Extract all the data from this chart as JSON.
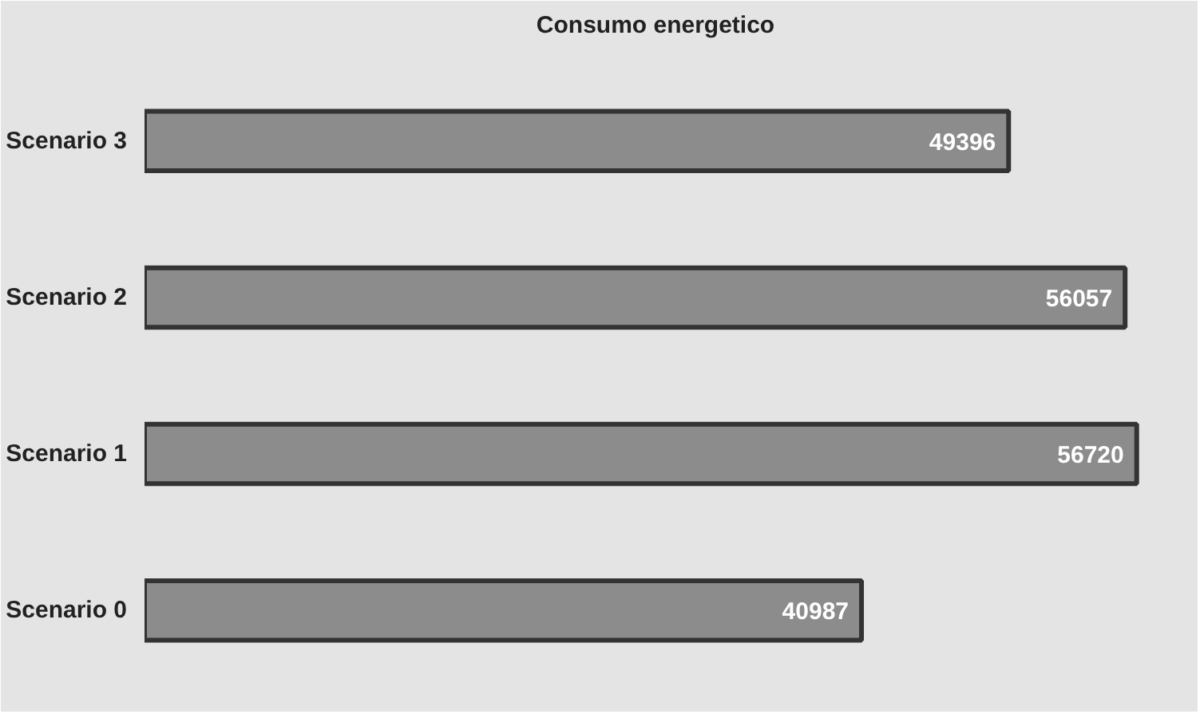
{
  "chart_data": {
    "type": "bar",
    "orientation": "horizontal",
    "title": "Consumo energetico",
    "categories": [
      "Scenario 3",
      "Scenario 2",
      "Scenario 1",
      "Scenario 0"
    ],
    "values": [
      49396,
      56057,
      56720,
      40987
    ],
    "color": "#8c8c8c",
    "data_labels": true,
    "tick_labels": "y"
  }
}
